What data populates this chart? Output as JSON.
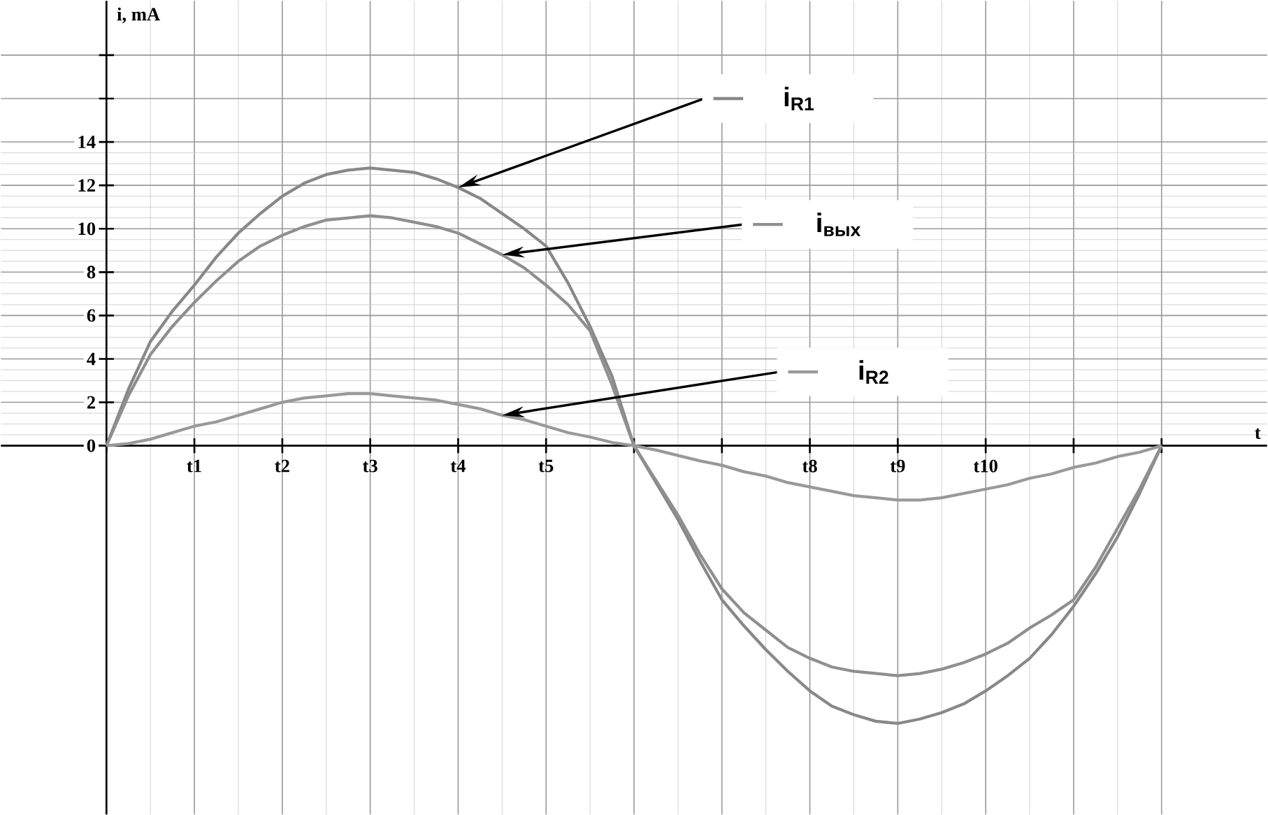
{
  "chart_data": {
    "type": "line",
    "xlabel": "t",
    "ylabel": "i, mA",
    "categories": [
      null,
      null,
      null,
      null,
      "t1",
      null,
      null,
      null,
      "t2",
      null,
      null,
      null,
      "t3",
      null,
      null,
      null,
      "t4",
      null,
      null,
      null,
      "t5",
      null,
      null,
      null,
      null,
      null,
      null,
      null,
      null,
      null,
      null,
      null,
      "t8",
      null,
      null,
      null,
      "t9",
      null,
      null,
      null,
      "t10",
      null,
      null,
      null,
      null,
      null,
      null,
      null,
      null
    ],
    "series": [
      {
        "name": "i$_{R1}$",
        "color": "#888888",
        "values": [
          0,
          2.6,
          4.8,
          6.2,
          7.4,
          8.7,
          9.8,
          10.7,
          11.5,
          12.1,
          12.5,
          12.7,
          12.8,
          12.7,
          12.6,
          12.3,
          11.9,
          11.4,
          10.7,
          10.0,
          9.2,
          7.5,
          5.5,
          3.2,
          0,
          -1.7,
          -3.4,
          -5.3,
          -7.1,
          -8.3,
          -9.4,
          -10.4,
          -11.3,
          -12.0,
          -12.4,
          -12.7,
          -12.8,
          -12.6,
          -12.3,
          -11.9,
          -11.3,
          -10.6,
          -9.8,
          -8.7,
          -7.4,
          -5.9,
          -4.2,
          -2.2,
          0
        ]
      },
      {
        "name": "i$_{вых}$",
        "color": "#8f8f8f",
        "values": [
          0,
          2.3,
          4.2,
          5.5,
          6.6,
          7.6,
          8.5,
          9.2,
          9.7,
          10.1,
          10.4,
          10.5,
          10.6,
          10.5,
          10.3,
          10.1,
          9.8,
          9.3,
          8.8,
          8.2,
          7.4,
          6.5,
          5.3,
          2.8,
          0,
          -1.6,
          -3.2,
          -5.0,
          -6.6,
          -7.7,
          -8.5,
          -9.3,
          -9.8,
          -10.2,
          -10.4,
          -10.5,
          -10.6,
          -10.5,
          -10.3,
          -10.0,
          -9.6,
          -9.1,
          -8.4,
          -7.8,
          -7.1,
          -5.6,
          -3.8,
          -2.0,
          0
        ]
      },
      {
        "name": "i$_{R2}$",
        "color": "#999999",
        "values": [
          0,
          0.1,
          0.3,
          0.6,
          0.9,
          1.1,
          1.4,
          1.7,
          2.0,
          2.2,
          2.3,
          2.4,
          2.4,
          2.3,
          2.2,
          2.1,
          1.9,
          1.7,
          1.4,
          1.2,
          0.9,
          0.6,
          0.4,
          0.15,
          0,
          -0.2,
          -0.45,
          -0.7,
          -0.9,
          -1.2,
          -1.4,
          -1.7,
          -1.9,
          -2.1,
          -2.3,
          -2.4,
          -2.5,
          -2.5,
          -2.4,
          -2.2,
          -2.0,
          -1.8,
          -1.5,
          -1.3,
          -1.0,
          -0.8,
          -0.5,
          -0.3,
          0
        ]
      }
    ],
    "ylim": [
      -17,
      20.5
    ],
    "yticks": [
      0,
      2,
      4,
      6,
      8,
      10,
      12,
      14,
      {
        "value": 16,
        "label": null
      },
      {
        "value": 18,
        "label": null
      }
    ],
    "grid": true,
    "legend": "right"
  }
}
